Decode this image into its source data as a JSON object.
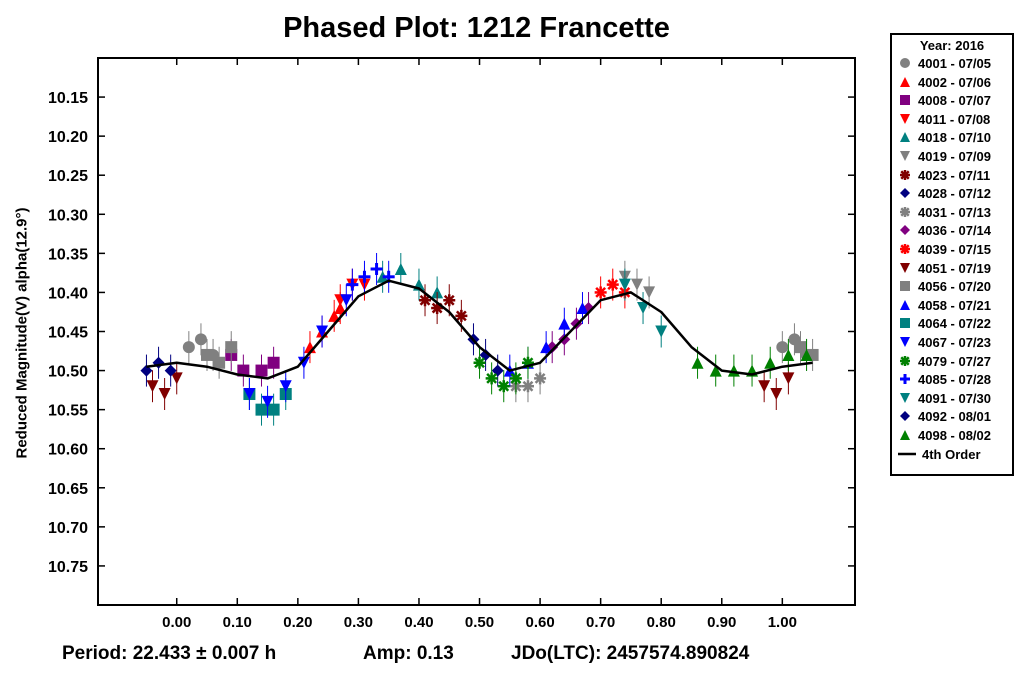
{
  "chart_data": {
    "type": "scatter",
    "title": "Phased Plot: 1212 Francette",
    "xlabel": "",
    "ylabel": "Reduced Magnitude(V) alpha(12.9°)",
    "xlim": [
      -0.13,
      1.12
    ],
    "ylim": [
      10.1,
      10.8
    ],
    "y_inverted": true,
    "x_ticks": [
      "0.00",
      "0.10",
      "0.20",
      "0.30",
      "0.40",
      "0.50",
      "0.60",
      "0.70",
      "0.80",
      "0.90",
      "1.00"
    ],
    "y_ticks": [
      "10.15",
      "10.20",
      "10.25",
      "10.30",
      "10.35",
      "10.40",
      "10.45",
      "10.50",
      "10.55",
      "10.60",
      "10.65",
      "10.70",
      "10.75"
    ],
    "grid": false,
    "legend_position": "right",
    "legend_title": "Year: 2016",
    "series": [
      {
        "name": "4001 - 07/05",
        "marker": "circle",
        "color": "#808080",
        "x": [
          0.02,
          0.04,
          0.06,
          1.0,
          1.02,
          1.04
        ],
        "y": [
          10.47,
          10.46,
          10.48,
          10.47,
          10.46,
          10.48
        ]
      },
      {
        "name": "4002 - 07/06",
        "marker": "triangle-up",
        "color": "#ff0000",
        "x": [
          0.22,
          0.24,
          0.26,
          0.27
        ],
        "y": [
          10.47,
          10.45,
          10.43,
          10.42
        ]
      },
      {
        "name": "4008 - 07/07",
        "marker": "square",
        "color": "#800080",
        "x": [
          0.09,
          0.11,
          0.14,
          0.16
        ],
        "y": [
          10.48,
          10.5,
          10.5,
          10.49
        ]
      },
      {
        "name": "4011 - 07/08",
        "marker": "triangle-down",
        "color": "#ff0000",
        "x": [
          0.27,
          0.29,
          0.31
        ],
        "y": [
          10.41,
          10.39,
          10.39
        ]
      },
      {
        "name": "4018 - 07/10",
        "marker": "triangle-up",
        "color": "#008080",
        "x": [
          0.34,
          0.37,
          0.4,
          0.43
        ],
        "y": [
          10.38,
          10.37,
          10.39,
          10.4
        ]
      },
      {
        "name": "4019 - 07/09",
        "marker": "triangle-down",
        "color": "#808080",
        "x": [
          0.74,
          0.76,
          0.78
        ],
        "y": [
          10.38,
          10.39,
          10.4
        ]
      },
      {
        "name": "4023 - 07/11",
        "marker": "asterisk",
        "color": "#800000",
        "x": [
          0.41,
          0.43,
          0.45,
          0.47
        ],
        "y": [
          10.41,
          10.42,
          10.41,
          10.43
        ]
      },
      {
        "name": "4028 - 07/12",
        "marker": "diamond",
        "color": "#000080",
        "x": [
          0.49,
          0.51,
          0.53
        ],
        "y": [
          10.46,
          10.48,
          10.5
        ]
      },
      {
        "name": "4031 - 07/13",
        "marker": "asterisk",
        "color": "#808080",
        "x": [
          0.56,
          0.58,
          0.6
        ],
        "y": [
          10.52,
          10.52,
          10.51
        ]
      },
      {
        "name": "4036 - 07/14",
        "marker": "diamond",
        "color": "#800080",
        "x": [
          0.62,
          0.64,
          0.66,
          0.68
        ],
        "y": [
          10.47,
          10.46,
          10.44,
          10.42
        ]
      },
      {
        "name": "4039 - 07/15",
        "marker": "asterisk",
        "color": "#ff0000",
        "x": [
          0.7,
          0.72,
          0.74
        ],
        "y": [
          10.4,
          10.39,
          10.4
        ]
      },
      {
        "name": "4051 - 07/19",
        "marker": "triangle-down",
        "color": "#800000",
        "x": [
          -0.04,
          -0.02,
          0.0,
          0.97,
          0.99,
          1.01
        ],
        "y": [
          10.52,
          10.53,
          10.51,
          10.52,
          10.53,
          10.51
        ]
      },
      {
        "name": "4056 - 07/20",
        "marker": "square",
        "color": "#808080",
        "x": [
          0.05,
          0.07,
          0.09,
          1.03,
          1.05
        ],
        "y": [
          10.48,
          10.49,
          10.47,
          10.47,
          10.48
        ]
      },
      {
        "name": "4058 - 07/21",
        "marker": "triangle-up",
        "color": "#0000ff",
        "x": [
          0.55,
          0.58,
          0.61,
          0.64,
          0.67
        ],
        "y": [
          10.5,
          10.49,
          10.47,
          10.44,
          10.42
        ]
      },
      {
        "name": "4064 - 07/22",
        "marker": "square",
        "color": "#008080",
        "x": [
          0.12,
          0.14,
          0.16,
          0.18
        ],
        "y": [
          10.53,
          10.55,
          10.55,
          10.53
        ]
      },
      {
        "name": "4067 - 07/23",
        "marker": "triangle-down",
        "color": "#0000ff",
        "x": [
          0.12,
          0.15,
          0.18,
          0.21,
          0.24,
          0.28
        ],
        "y": [
          10.53,
          10.54,
          10.52,
          10.49,
          10.45,
          10.41
        ]
      },
      {
        "name": "4079 - 07/27",
        "marker": "asterisk",
        "color": "#008000",
        "x": [
          0.5,
          0.52,
          0.54,
          0.56,
          0.58
        ],
        "y": [
          10.49,
          10.51,
          10.52,
          10.51,
          10.49
        ]
      },
      {
        "name": "4085 - 07/28",
        "marker": "plus",
        "color": "#0000ff",
        "x": [
          0.29,
          0.31,
          0.33,
          0.35
        ],
        "y": [
          10.39,
          10.38,
          10.37,
          10.38
        ]
      },
      {
        "name": "4091 - 07/30",
        "marker": "triangle-down",
        "color": "#008080",
        "x": [
          0.74,
          0.77,
          0.8
        ],
        "y": [
          10.39,
          10.42,
          10.45
        ]
      },
      {
        "name": "4092 - 08/01",
        "marker": "diamond",
        "color": "#000080",
        "x": [
          -0.05,
          -0.03,
          -0.01
        ],
        "y": [
          10.5,
          10.49,
          10.5
        ]
      },
      {
        "name": "4098 - 08/02",
        "marker": "triangle-up",
        "color": "#008000",
        "x": [
          0.86,
          0.89,
          0.92,
          0.95,
          0.98,
          1.01,
          1.04
        ],
        "y": [
          10.49,
          10.5,
          10.5,
          10.5,
          10.49,
          10.48,
          10.48
        ]
      }
    ],
    "fit": {
      "name": "4th Order",
      "color": "#000000",
      "x": [
        -0.05,
        0.0,
        0.05,
        0.1,
        0.15,
        0.2,
        0.25,
        0.3,
        0.35,
        0.4,
        0.45,
        0.5,
        0.55,
        0.6,
        0.65,
        0.7,
        0.75,
        0.8,
        0.85,
        0.9,
        0.95,
        1.0,
        1.05
      ],
      "y": [
        10.495,
        10.49,
        10.495,
        10.505,
        10.51,
        10.495,
        10.45,
        10.405,
        10.385,
        10.395,
        10.425,
        10.47,
        10.5,
        10.49,
        10.45,
        10.41,
        10.4,
        10.425,
        10.47,
        10.5,
        10.505,
        10.495,
        10.49
      ]
    }
  },
  "footer": {
    "period": "Period: 22.433 ± 0.007 h",
    "amp": "Amp: 0.13",
    "jdo": "JDo(LTC): 2457574.890824"
  }
}
